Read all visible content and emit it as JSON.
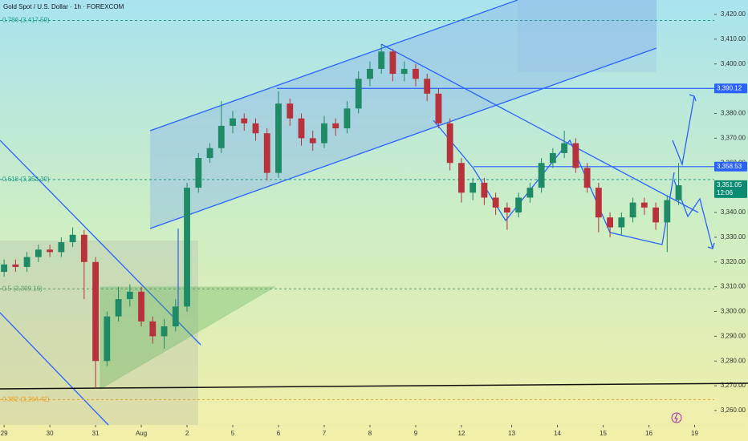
{
  "chart_data": {
    "type": "candlestick",
    "title": "Gold Spot / U.S. Dollar · 1h · FOREXCOM",
    "up_color": "#1e8a66",
    "down_color": "#b7323b",
    "xlim": [
      -0.09,
      15.53
    ],
    "ylim": [
      3254.17,
      3425.83
    ],
    "xticks": [
      {
        "value": 0,
        "label": "29"
      },
      {
        "value": 1,
        "label": "30"
      },
      {
        "value": 2,
        "label": "31"
      },
      {
        "value": 3,
        "label": "Aug"
      },
      {
        "value": 4,
        "label": "2"
      },
      {
        "value": 5,
        "label": "5"
      },
      {
        "value": 6,
        "label": "6"
      },
      {
        "value": 7,
        "label": "7"
      },
      {
        "value": 8,
        "label": "8"
      },
      {
        "value": 9,
        "label": "9"
      },
      {
        "value": 10,
        "label": "12"
      },
      {
        "value": 11.1,
        "label": "13"
      },
      {
        "value": 12.1,
        "label": "14"
      },
      {
        "value": 13.1,
        "label": "15"
      },
      {
        "value": 14.1,
        "label": "16"
      },
      {
        "value": 15.1,
        "label": "19"
      }
    ],
    "yticks": [
      {
        "value": 3260,
        "label": "3,260.00"
      },
      {
        "value": 3270,
        "label": "3,270.00"
      },
      {
        "value": 3280,
        "label": "3,280.00"
      },
      {
        "value": 3290,
        "label": "3,290.00"
      },
      {
        "value": 3300,
        "label": "3,300.00"
      },
      {
        "value": 3310,
        "label": "3,310.00"
      },
      {
        "value": 3320,
        "label": "3,320.00"
      },
      {
        "value": 3330,
        "label": "3,330.00"
      },
      {
        "value": 3340,
        "label": "3,340.00"
      },
      {
        "value": 3350,
        "label": "3,350.00"
      },
      {
        "value": 3360,
        "label": "3,360.00"
      },
      {
        "value": 3370,
        "label": "3,370.00"
      },
      {
        "value": 3380,
        "label": "3,380.00"
      },
      {
        "value": 3390,
        "label": "3,390.00"
      },
      {
        "value": 3400,
        "label": "3,400.00"
      },
      {
        "value": 3410,
        "label": "3,410.00"
      },
      {
        "value": 3420,
        "label": "3,420.00"
      }
    ],
    "fib_levels": [
      {
        "label": "0.786 (3,417.59)",
        "value": 3417.59,
        "color": "#1f9e8a"
      },
      {
        "label": "0.618 (3,353.30)",
        "value": 3353.3,
        "color": "#1f9e8a"
      },
      {
        "label": "0.5 (3,309.16)",
        "value": 3309.16,
        "color": "#5a9a6a"
      },
      {
        "label": "0.382 (3,264.42)",
        "value": 3264.42,
        "color": "#e8a020"
      }
    ],
    "price_labels": [
      {
        "label": "3,390.12",
        "value": 3390.12,
        "color": "#2962ff"
      },
      {
        "label": "3,358.53",
        "value": 3358.53,
        "color": "#2962ff"
      },
      {
        "label": "3,351.05",
        "value": 3351.05,
        "color": "#0b8c72",
        "countdown": "12:06"
      }
    ],
    "x": [
      0,
      0.25,
      0.5,
      0.75,
      1,
      1.25,
      1.5,
      1.75,
      2,
      2.25,
      2.5,
      2.75,
      3,
      3.25,
      3.5,
      3.75,
      4,
      4.25,
      4.5,
      4.75,
      5,
      5.25,
      5.5,
      5.75,
      6,
      6.25,
      6.5,
      6.75,
      7,
      7.25,
      7.5,
      7.75,
      8,
      8.25,
      8.5,
      8.75,
      9,
      9.25,
      9.5,
      9.75,
      10,
      10.25,
      10.5,
      10.75,
      11,
      11.25,
      11.5,
      11.75,
      12,
      12.25,
      12.5,
      12.75,
      13,
      13.25,
      13.5,
      13.75,
      14,
      14.25,
      14.5,
      14.75
    ],
    "open": [
      3316,
      3319,
      3318,
      3322,
      3325,
      3324,
      3328,
      3331,
      3320,
      3280,
      3298,
      3305,
      3308,
      3296,
      3290,
      3294,
      3302,
      3350,
      3362,
      3366,
      3375,
      3378,
      3376,
      3372,
      3356,
      3384,
      3378,
      3370,
      3368,
      3376,
      3374,
      3382,
      3394,
      3398,
      3405,
      3396,
      3398,
      3394,
      3388,
      3376,
      3360,
      3348,
      3352,
      3346,
      3342,
      3340,
      3346,
      3350,
      3360,
      3364,
      3368,
      3358,
      3350,
      3338,
      3334,
      3338,
      3344,
      3342,
      3336,
      3345
    ],
    "high": [
      3321,
      3321,
      3324,
      3327,
      3327,
      3330,
      3334,
      3333,
      3322,
      3300,
      3310,
      3311,
      3310,
      3298,
      3297,
      3305,
      3352,
      3364,
      3368,
      3385,
      3381,
      3380,
      3378,
      3374,
      3389,
      3386,
      3380,
      3373,
      3379,
      3378,
      3385,
      3397,
      3401,
      3408,
      3406,
      3401,
      3400,
      3396,
      3390,
      3378,
      3362,
      3354,
      3354,
      3348,
      3344,
      3348,
      3352,
      3362,
      3366,
      3373,
      3370,
      3360,
      3352,
      3340,
      3340,
      3346,
      3346,
      3344,
      3347,
      3360
    ],
    "low": [
      3314,
      3316,
      3316,
      3320,
      3322,
      3322,
      3326,
      3305,
      3269,
      3278,
      3296,
      3302,
      3294,
      3287,
      3285,
      3292,
      3300,
      3348,
      3360,
      3364,
      3372,
      3373,
      3369,
      3353,
      3354,
      3375,
      3367,
      3365,
      3366,
      3371,
      3372,
      3380,
      3391,
      3396,
      3393,
      3393,
      3391,
      3385,
      3374,
      3357,
      3344,
      3345,
      3343,
      3339,
      3333,
      3338,
      3344,
      3348,
      3358,
      3362,
      3356,
      3348,
      3332,
      3330,
      3331,
      3336,
      3339,
      3333,
      3324,
      3343
    ],
    "close": [
      3319,
      3318,
      3322,
      3325,
      3324,
      3328,
      3331,
      3320,
      3280,
      3298,
      3305,
      3308,
      3296,
      3290,
      3294,
      3302,
      3350,
      3362,
      3366,
      3375,
      3378,
      3376,
      3372,
      3356,
      3384,
      3378,
      3370,
      3368,
      3376,
      3374,
      3382,
      3394,
      3398,
      3405,
      3396,
      3398,
      3394,
      3388,
      3376,
      3360,
      3348,
      3352,
      3346,
      3342,
      3340,
      3346,
      3350,
      3360,
      3364,
      3368,
      3358,
      3350,
      3338,
      3334,
      3338,
      3344,
      3342,
      3336,
      3345,
      3351
    ]
  }
}
